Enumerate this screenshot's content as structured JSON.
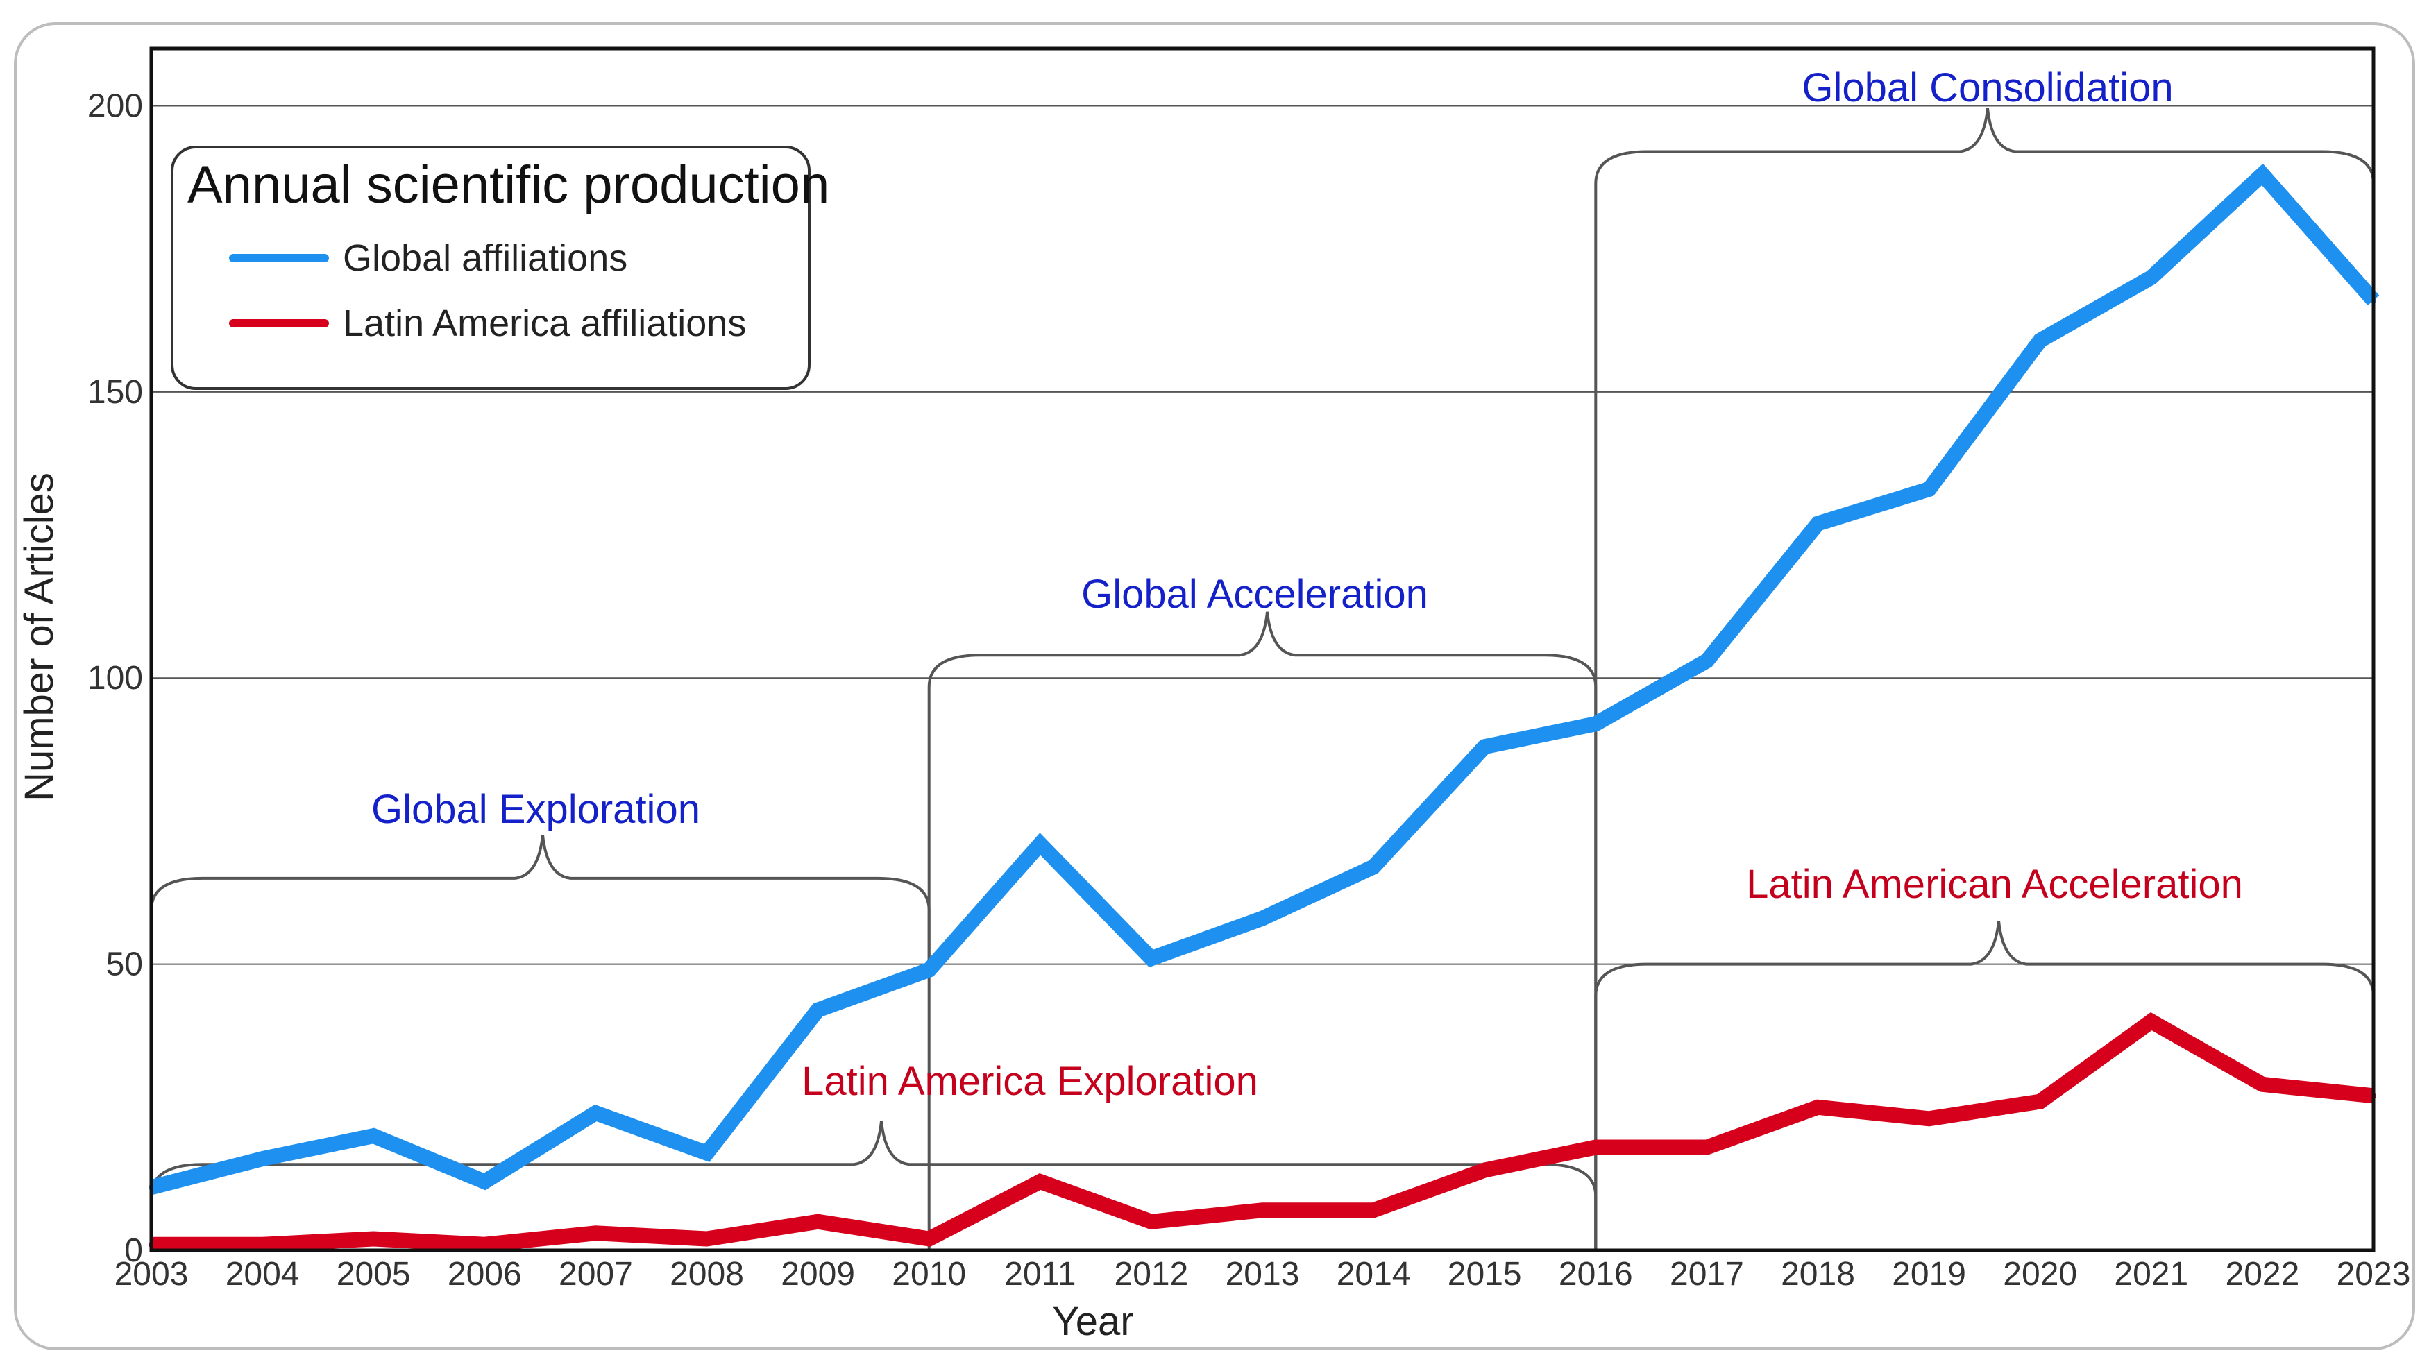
{
  "chart_data": {
    "type": "line",
    "title": "Annual scientific production",
    "xlabel": "Year",
    "ylabel": "Number of Articles",
    "categories": [
      "2003",
      "2004",
      "2005",
      "2006",
      "2007",
      "2008",
      "2009",
      "2010",
      "2011",
      "2012",
      "2013",
      "2014",
      "2015",
      "2016",
      "2017",
      "2018",
      "2019",
      "2020",
      "2021",
      "2022",
      "2023"
    ],
    "ylim": [
      0,
      210
    ],
    "yticks": [
      "0",
      "50",
      "100",
      "150",
      "200"
    ],
    "grid": "horizontal",
    "legend_position": "top-left",
    "series": [
      {
        "name": "Global affiliations",
        "color": "#1E90F0",
        "values": [
          11,
          16,
          20,
          12,
          24,
          17,
          42,
          49,
          71,
          51,
          58,
          67,
          88,
          92,
          103,
          127,
          133,
          159,
          170,
          188,
          166
        ]
      },
      {
        "name": "Latin America affiliations",
        "color": "#D7001C",
        "values": [
          1,
          1,
          2,
          1,
          3,
          2,
          5,
          2,
          12,
          5,
          7,
          7,
          14,
          18,
          18,
          25,
          23,
          26,
          40,
          29,
          27
        ]
      }
    ],
    "annotations": [
      {
        "label": "Global Exploration",
        "color": "#1420C8",
        "from": "2003",
        "to": "2010"
      },
      {
        "label": "Global Acceleration",
        "color": "#1420C8",
        "from": "2010",
        "to": "2016"
      },
      {
        "label": "Global Consolidation",
        "color": "#1420C8",
        "from": "2016",
        "to": "2023"
      },
      {
        "label": "Latin America Exploration",
        "color": "#C4001C",
        "from": "2003",
        "to": "2016"
      },
      {
        "label": "Latin American Acceleration",
        "color": "#C4001C",
        "from": "2016",
        "to": "2023"
      }
    ]
  }
}
